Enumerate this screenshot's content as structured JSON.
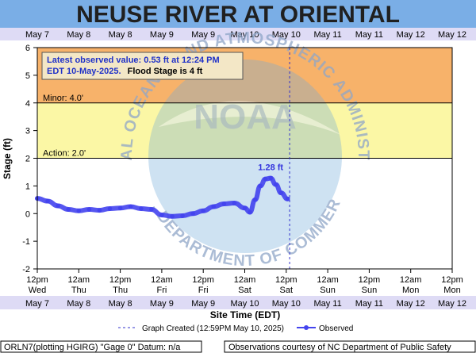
{
  "title": "NEUSE RIVER AT ORIENTAL",
  "info_box": {
    "line1": "Latest observed value: 0.53 ft at 12:24 PM",
    "line2a": "EDT 10-May-2025.",
    "line2b": "Flood Stage is 4 ft"
  },
  "watermark": {
    "ring_top": "NATIONAL OCEANIC AND ATMOSPHERIC ADMINISTRATION",
    "ring_bottom": "U.S. DEPARTMENT OF COMMERCE",
    "center": "NOAA"
  },
  "legend": {
    "created_label": "Graph Created (12:59PM May 10, 2025)",
    "observed_label": "Observed"
  },
  "footer": {
    "left": "ORLN7(plotting HGIRG) \"Gage 0\" Datum: n/a",
    "right": "Observations courtesy of NC Department of Public Safety"
  },
  "colors": {
    "title_bar": "#7aaee6",
    "major_band": "#f7b26a",
    "minor_band": "#fbf7a5",
    "observed": "#4444ee",
    "created_line": "#3333cc",
    "date_strip": "#dedbf5",
    "watermark": "#6fa8d6"
  },
  "chart_data": {
    "type": "line",
    "xlabel": "Site Time (EDT)",
    "ylabel": "Stage (ft)",
    "ylim": [
      -2,
      6
    ],
    "yticks": [
      -2,
      -1,
      0,
      1,
      2,
      3,
      4,
      5,
      6
    ],
    "grid": false,
    "legend_position": "bottom-center",
    "x_ticks_top": [
      "May 7",
      "May 8",
      "May 8",
      "May 9",
      "May 9",
      "May 10",
      "May 10",
      "May 11",
      "May 11",
      "May 12",
      "May 12"
    ],
    "x_ticks_time": [
      "12pm",
      "12am",
      "12pm",
      "12am",
      "12pm",
      "12am",
      "12pm",
      "12am",
      "12pm",
      "12am",
      "12pm"
    ],
    "x_ticks_day": [
      "Wed",
      "Thu",
      "Thu",
      "Fri",
      "Fri",
      "Sat",
      "Sat",
      "Sun",
      "Sun",
      "Mon",
      "Mon"
    ],
    "x_ticks_bottom": [
      "May 7",
      "May 8",
      "May 8",
      "May 9",
      "May 9",
      "May 10",
      "May 10",
      "May 11",
      "May 11",
      "May 12",
      "May 12"
    ],
    "thresholds": [
      {
        "name": "Minor",
        "label": "Minor: 4.0'",
        "value": 4.0,
        "band_top": 6
      },
      {
        "name": "Action",
        "label": "Action: 2.0'",
        "value": 2.0,
        "band_top": 4
      }
    ],
    "graph_created": "May 10 12:59",
    "peak_label": "1.28 ft",
    "series": [
      {
        "name": "Observed",
        "x": [
          "May 7 12:00",
          "May 7 15:00",
          "May 7 18:00",
          "May 7 21:00",
          "May 8 00:00",
          "May 8 03:00",
          "May 8 06:00",
          "May 8 09:00",
          "May 8 12:00",
          "May 8 15:00",
          "May 8 18:00",
          "May 8 21:00",
          "May 9 00:00",
          "May 9 03:00",
          "May 9 06:00",
          "May 9 09:00",
          "May 9 12:00",
          "May 9 15:00",
          "May 9 18:00",
          "May 9 21:00",
          "May 10 00:00",
          "May 10 01:30",
          "May 10 03:00",
          "May 10 04:30",
          "May 10 06:00",
          "May 10 07:30",
          "May 10 09:00",
          "May 10 10:30",
          "May 10 12:24"
        ],
        "values": [
          0.55,
          0.45,
          0.28,
          0.15,
          0.1,
          0.15,
          0.12,
          0.18,
          0.2,
          0.25,
          0.18,
          0.15,
          -0.05,
          -0.1,
          -0.08,
          0.0,
          0.1,
          0.25,
          0.35,
          0.38,
          0.2,
          0.05,
          0.5,
          1.0,
          1.25,
          1.28,
          1.05,
          0.75,
          0.53
        ]
      }
    ]
  }
}
